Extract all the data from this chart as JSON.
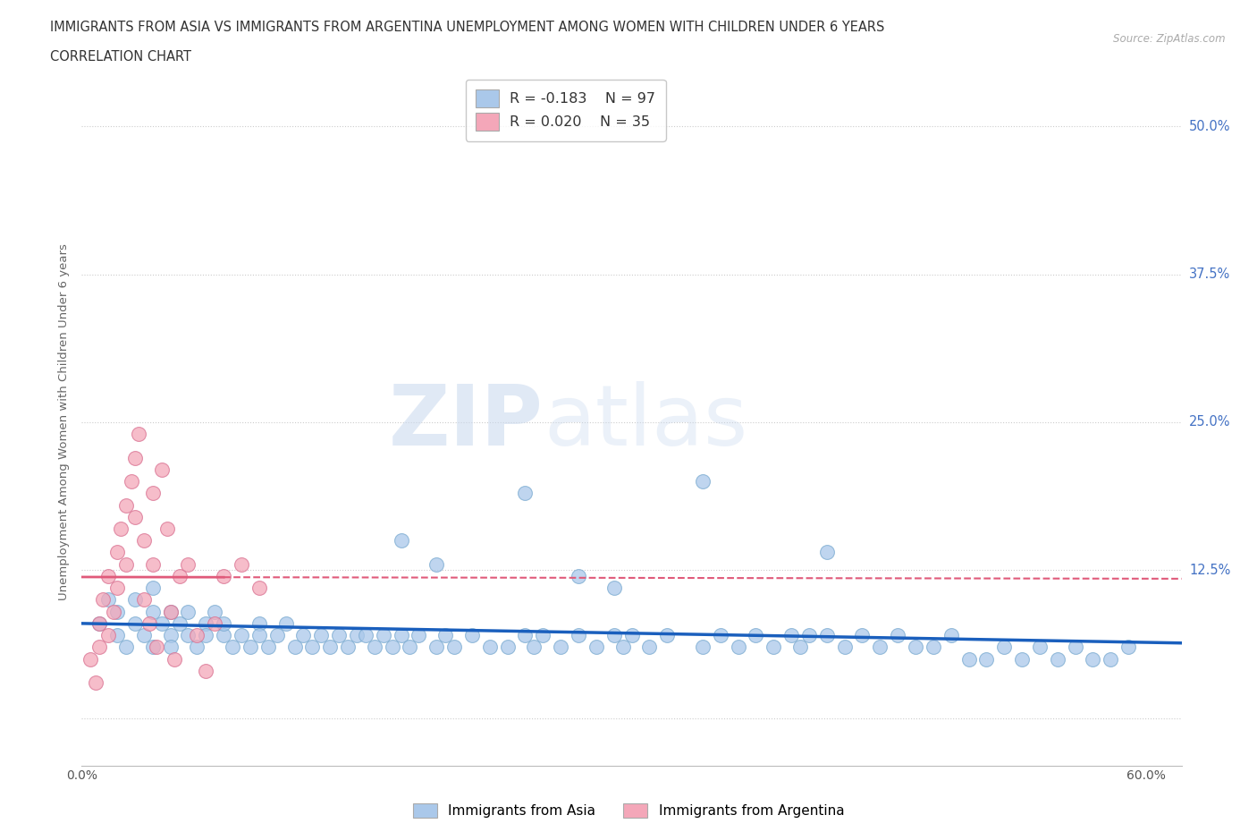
{
  "title_line1": "IMMIGRANTS FROM ASIA VS IMMIGRANTS FROM ARGENTINA UNEMPLOYMENT AMONG WOMEN WITH CHILDREN UNDER 6 YEARS",
  "title_line2": "CORRELATION CHART",
  "source_text": "Source: ZipAtlas.com",
  "ylabel": "Unemployment Among Women with Children Under 6 years",
  "ytick_values": [
    0.0,
    0.125,
    0.25,
    0.375,
    0.5
  ],
  "ytick_labels": [
    "",
    "12.5%",
    "25.0%",
    "37.5%",
    "50.0%"
  ],
  "xtick_values": [
    0.0,
    0.1,
    0.2,
    0.3,
    0.4,
    0.5,
    0.6
  ],
  "xtick_show": [
    "0.0%",
    "",
    "",
    "",
    "",
    "",
    "60.0%"
  ],
  "watermark_part1": "ZIP",
  "watermark_part2": "atlas",
  "xlim": [
    0.0,
    0.62
  ],
  "ylim": [
    -0.04,
    0.54
  ],
  "background_color": "#ffffff",
  "grid_color": "#cccccc",
  "series": [
    {
      "name": "Immigrants from Asia",
      "color": "#aac8ea",
      "edge_color": "#7aaad0",
      "trend_color": "#1a5fbd",
      "trend_style": "solid",
      "trend_only_range": [
        0.0,
        0.62
      ],
      "R": -0.183,
      "N": 97,
      "x": [
        0.01,
        0.015,
        0.02,
        0.02,
        0.025,
        0.03,
        0.03,
        0.035,
        0.04,
        0.04,
        0.04,
        0.045,
        0.05,
        0.05,
        0.05,
        0.055,
        0.06,
        0.06,
        0.065,
        0.07,
        0.07,
        0.075,
        0.08,
        0.08,
        0.085,
        0.09,
        0.095,
        0.1,
        0.1,
        0.105,
        0.11,
        0.115,
        0.12,
        0.125,
        0.13,
        0.135,
        0.14,
        0.145,
        0.15,
        0.155,
        0.16,
        0.165,
        0.17,
        0.175,
        0.18,
        0.185,
        0.19,
        0.2,
        0.205,
        0.21,
        0.22,
        0.23,
        0.24,
        0.25,
        0.255,
        0.26,
        0.27,
        0.28,
        0.29,
        0.3,
        0.305,
        0.31,
        0.32,
        0.33,
        0.35,
        0.36,
        0.37,
        0.38,
        0.39,
        0.4,
        0.405,
        0.41,
        0.42,
        0.43,
        0.44,
        0.45,
        0.46,
        0.47,
        0.48,
        0.49,
        0.5,
        0.51,
        0.52,
        0.53,
        0.54,
        0.55,
        0.56,
        0.57,
        0.58,
        0.59,
        0.25,
        0.35,
        0.28,
        0.42,
        0.2,
        0.3,
        0.18
      ],
      "y": [
        0.08,
        0.1,
        0.07,
        0.09,
        0.06,
        0.08,
        0.1,
        0.07,
        0.06,
        0.09,
        0.11,
        0.08,
        0.07,
        0.09,
        0.06,
        0.08,
        0.07,
        0.09,
        0.06,
        0.08,
        0.07,
        0.09,
        0.07,
        0.08,
        0.06,
        0.07,
        0.06,
        0.08,
        0.07,
        0.06,
        0.07,
        0.08,
        0.06,
        0.07,
        0.06,
        0.07,
        0.06,
        0.07,
        0.06,
        0.07,
        0.07,
        0.06,
        0.07,
        0.06,
        0.07,
        0.06,
        0.07,
        0.06,
        0.07,
        0.06,
        0.07,
        0.06,
        0.06,
        0.07,
        0.06,
        0.07,
        0.06,
        0.07,
        0.06,
        0.07,
        0.06,
        0.07,
        0.06,
        0.07,
        0.06,
        0.07,
        0.06,
        0.07,
        0.06,
        0.07,
        0.06,
        0.07,
        0.07,
        0.06,
        0.07,
        0.06,
        0.07,
        0.06,
        0.06,
        0.07,
        0.05,
        0.05,
        0.06,
        0.05,
        0.06,
        0.05,
        0.06,
        0.05,
        0.05,
        0.06,
        0.19,
        0.2,
        0.12,
        0.14,
        0.13,
        0.11,
        0.15
      ]
    },
    {
      "name": "Immigrants from Argentina",
      "color": "#f4a7b9",
      "edge_color": "#d97090",
      "trend_color": "#e05a7a",
      "trend_style": "solid_then_dashed",
      "trend_solid_range": [
        0.0,
        0.08
      ],
      "trend_dashed_range": [
        0.08,
        0.62
      ],
      "R": 0.02,
      "N": 35,
      "x": [
        0.005,
        0.008,
        0.01,
        0.01,
        0.012,
        0.015,
        0.015,
        0.018,
        0.02,
        0.02,
        0.022,
        0.025,
        0.025,
        0.028,
        0.03,
        0.03,
        0.032,
        0.035,
        0.035,
        0.038,
        0.04,
        0.04,
        0.042,
        0.045,
        0.048,
        0.05,
        0.052,
        0.055,
        0.06,
        0.065,
        0.07,
        0.075,
        0.08,
        0.09,
        0.1
      ],
      "y": [
        0.05,
        0.03,
        0.08,
        0.06,
        0.1,
        0.12,
        0.07,
        0.09,
        0.14,
        0.11,
        0.16,
        0.18,
        0.13,
        0.2,
        0.22,
        0.17,
        0.24,
        0.15,
        0.1,
        0.08,
        0.19,
        0.13,
        0.06,
        0.21,
        0.16,
        0.09,
        0.05,
        0.12,
        0.13,
        0.07,
        0.04,
        0.08,
        0.12,
        0.13,
        0.11
      ]
    }
  ]
}
